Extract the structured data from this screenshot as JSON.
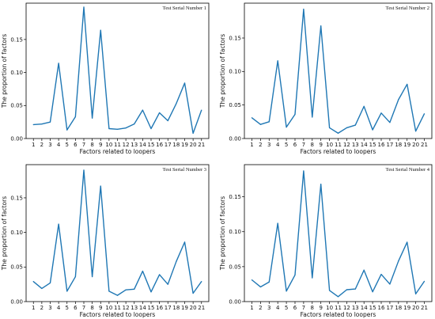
{
  "chart_data": [
    {
      "type": "line",
      "annotation": "Test Serial Number 1",
      "xlabel": "Factors related to loopers",
      "ylabel": "The proportion of factors",
      "x": [
        1,
        2,
        3,
        4,
        5,
        6,
        7,
        8,
        9,
        10,
        11,
        12,
        13,
        14,
        15,
        16,
        17,
        18,
        19,
        20,
        21
      ],
      "values": [
        0.021,
        0.022,
        0.025,
        0.114,
        0.013,
        0.033,
        0.199,
        0.031,
        0.164,
        0.015,
        0.014,
        0.016,
        0.022,
        0.043,
        0.015,
        0.039,
        0.027,
        0.053,
        0.084,
        0.008,
        0.043
      ],
      "yticks": [
        0.0,
        0.05,
        0.1,
        0.15
      ],
      "ytick_labels": [
        "0.00",
        "0.05",
        "0.10",
        "0.15"
      ],
      "ylim": [
        0,
        0.205
      ],
      "color": "#1f77b4"
    },
    {
      "type": "line",
      "annotation": "Test Serial Number 2",
      "xlabel": "Factors related to loopers",
      "ylabel": "The proportion of factors",
      "x": [
        1,
        2,
        3,
        4,
        5,
        6,
        7,
        8,
        9,
        10,
        11,
        12,
        13,
        14,
        15,
        16,
        17,
        18,
        19,
        20,
        21
      ],
      "values": [
        0.031,
        0.021,
        0.025,
        0.116,
        0.017,
        0.036,
        0.193,
        0.032,
        0.168,
        0.016,
        0.008,
        0.016,
        0.02,
        0.048,
        0.013,
        0.038,
        0.024,
        0.058,
        0.081,
        0.011,
        0.037
      ],
      "yticks": [
        0.0,
        0.05,
        0.1,
        0.15
      ],
      "ytick_labels": [
        "0.00",
        "0.05",
        "0.10",
        "0.15"
      ],
      "ylim": [
        0,
        0.202
      ],
      "color": "#1f77b4"
    },
    {
      "type": "line",
      "annotation": "Test Serial Number 3",
      "xlabel": "Factors related to loopers",
      "ylabel": "The proportion of factors",
      "x": [
        1,
        2,
        3,
        4,
        5,
        6,
        7,
        8,
        9,
        10,
        11,
        12,
        13,
        14,
        15,
        16,
        17,
        18,
        19,
        20,
        21
      ],
      "values": [
        0.029,
        0.019,
        0.027,
        0.112,
        0.015,
        0.036,
        0.19,
        0.036,
        0.167,
        0.015,
        0.009,
        0.017,
        0.018,
        0.044,
        0.014,
        0.039,
        0.025,
        0.058,
        0.086,
        0.012,
        0.029
      ],
      "yticks": [
        0.0,
        0.05,
        0.1,
        0.15
      ],
      "ytick_labels": [
        "0.00",
        "0.05",
        "0.10",
        "0.15"
      ],
      "ylim": [
        0,
        0.198
      ],
      "color": "#1f77b4"
    },
    {
      "type": "line",
      "annotation": "Test Serial Number 4",
      "xlabel": "Factors related to loopers",
      "ylabel": "The proportion of factors",
      "x": [
        1,
        2,
        3,
        4,
        5,
        6,
        7,
        8,
        9,
        10,
        11,
        12,
        13,
        14,
        15,
        16,
        17,
        18,
        19,
        20,
        21
      ],
      "values": [
        0.031,
        0.021,
        0.028,
        0.112,
        0.015,
        0.038,
        0.187,
        0.034,
        0.168,
        0.016,
        0.007,
        0.017,
        0.018,
        0.045,
        0.014,
        0.039,
        0.025,
        0.058,
        0.085,
        0.011,
        0.029
      ],
      "yticks": [
        0.0,
        0.05,
        0.1,
        0.15
      ],
      "ytick_labels": [
        "0.00",
        "0.05",
        "0.10",
        "0.15"
      ],
      "ylim": [
        0,
        0.196
      ],
      "color": "#1f77b4"
    }
  ]
}
